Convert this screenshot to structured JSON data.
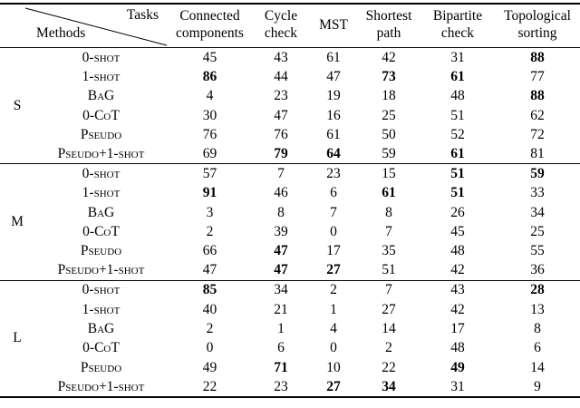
{
  "table": {
    "corner": {
      "tasks_label": "Tasks",
      "methods_label": "Methods"
    },
    "columns": [
      "Connected components",
      "Cycle check",
      "MST",
      "Shortest path",
      "Bipartite check",
      "Topological sorting"
    ],
    "groups": [
      {
        "label": "S",
        "rows": [
          {
            "method": "0-shot",
            "values": [
              45,
              43,
              61,
              42,
              31,
              88
            ],
            "bold": [
              0,
              0,
              0,
              0,
              0,
              1
            ]
          },
          {
            "method": "1-shot",
            "values": [
              86,
              44,
              47,
              73,
              61,
              77
            ],
            "bold": [
              1,
              0,
              0,
              1,
              1,
              0
            ]
          },
          {
            "method": "BaG",
            "values": [
              4,
              23,
              19,
              18,
              48,
              88
            ],
            "bold": [
              0,
              0,
              0,
              0,
              0,
              1
            ]
          },
          {
            "method": "0-CoT",
            "values": [
              30,
              47,
              16,
              25,
              51,
              62
            ],
            "bold": [
              0,
              0,
              0,
              0,
              0,
              0
            ]
          },
          {
            "method": "Pseudo",
            "values": [
              76,
              76,
              61,
              50,
              52,
              72
            ],
            "bold": [
              0,
              0,
              0,
              0,
              0,
              0
            ]
          },
          {
            "method": "Pseudo+1-shot",
            "values": [
              69,
              79,
              64,
              59,
              61,
              81
            ],
            "bold": [
              0,
              1,
              1,
              0,
              1,
              0
            ]
          }
        ]
      },
      {
        "label": "M",
        "rows": [
          {
            "method": "0-shot",
            "values": [
              57,
              7,
              23,
              15,
              51,
              59
            ],
            "bold": [
              0,
              0,
              0,
              0,
              1,
              1
            ]
          },
          {
            "method": "1-shot",
            "values": [
              91,
              46,
              6,
              61,
              51,
              33
            ],
            "bold": [
              1,
              0,
              0,
              1,
              1,
              0
            ]
          },
          {
            "method": "BaG",
            "values": [
              3,
              8,
              7,
              8,
              26,
              34
            ],
            "bold": [
              0,
              0,
              0,
              0,
              0,
              0
            ]
          },
          {
            "method": "0-CoT",
            "values": [
              2,
              39,
              0,
              7,
              45,
              25
            ],
            "bold": [
              0,
              0,
              0,
              0,
              0,
              0
            ]
          },
          {
            "method": "Pseudo",
            "values": [
              66,
              47,
              17,
              35,
              48,
              55
            ],
            "bold": [
              0,
              1,
              0,
              0,
              0,
              0
            ]
          },
          {
            "method": "Pseudo+1-shot",
            "values": [
              47,
              47,
              27,
              51,
              42,
              36
            ],
            "bold": [
              0,
              1,
              1,
              0,
              0,
              0
            ]
          }
        ]
      },
      {
        "label": "L",
        "rows": [
          {
            "method": "0-shot",
            "values": [
              85,
              34,
              2,
              7,
              43,
              28
            ],
            "bold": [
              1,
              0,
              0,
              0,
              0,
              1
            ]
          },
          {
            "method": "1-shot",
            "values": [
              40,
              21,
              1,
              27,
              42,
              13
            ],
            "bold": [
              0,
              0,
              0,
              0,
              0,
              0
            ]
          },
          {
            "method": "BaG",
            "values": [
              2,
              1,
              4,
              14,
              17,
              8
            ],
            "bold": [
              0,
              0,
              0,
              0,
              0,
              0
            ]
          },
          {
            "method": "0-CoT",
            "values": [
              0,
              6,
              0,
              2,
              48,
              6
            ],
            "bold": [
              0,
              0,
              0,
              0,
              0,
              0
            ]
          },
          {
            "method": "Pseudo",
            "values": [
              49,
              71,
              10,
              22,
              49,
              14
            ],
            "bold": [
              0,
              1,
              0,
              0,
              1,
              0
            ]
          },
          {
            "method": "Pseudo+1-shot",
            "values": [
              22,
              23,
              27,
              34,
              31,
              9
            ],
            "bold": [
              0,
              0,
              1,
              1,
              0,
              0
            ]
          }
        ]
      }
    ]
  }
}
